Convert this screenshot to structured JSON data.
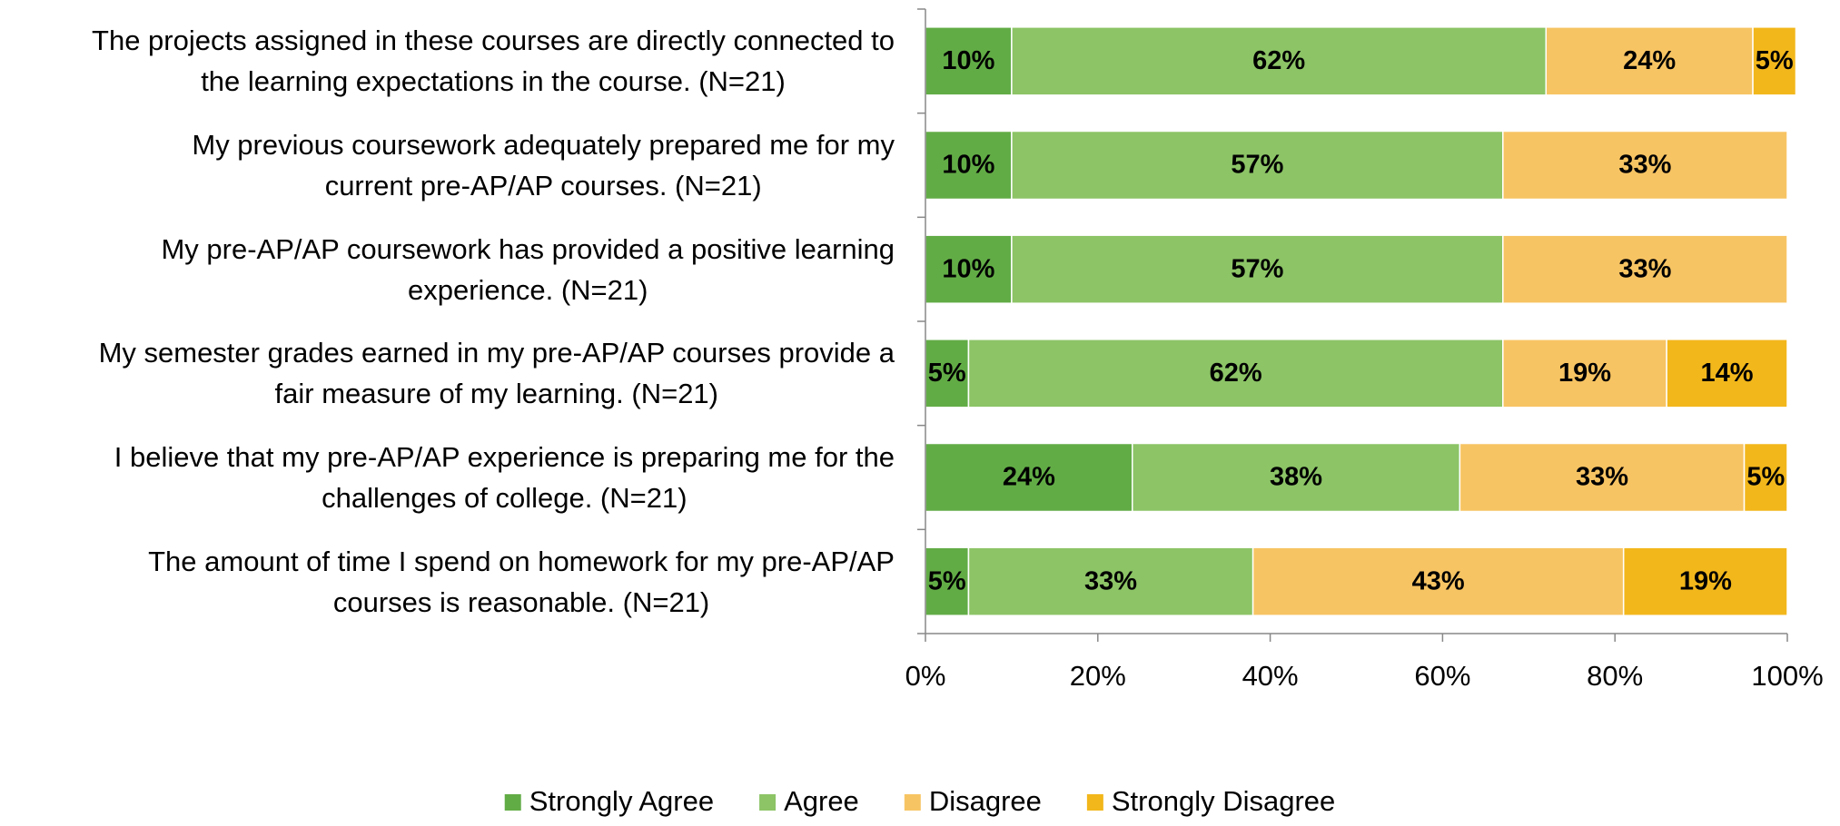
{
  "chart_data": {
    "type": "stacked-bar-horizontal",
    "categories": [
      "The projects assigned in these courses are directly connected to\nthe learning expectations in the course. (N=21)",
      "My previous coursework adequately prepared me for my\ncurrent pre-AP/AP courses. (N=21)",
      "My pre-AP/AP coursework has provided a positive learning\nexperience. (N=21)",
      "My semester grades earned in my pre-AP/AP courses provide a\nfair measure of my learning. (N=21)",
      "I believe that my pre-AP/AP experience is preparing me for the\nchallenges of college. (N=21)",
      "The amount of time I spend on homework for my pre-AP/AP\ncourses is reasonable. (N=21)"
    ],
    "series": [
      {
        "name": "Strongly Agree",
        "color": "#62ac46",
        "values": [
          10,
          10,
          10,
          5,
          24,
          5
        ],
        "value_labels": [
          "10%",
          "10%",
          "10%",
          "5%",
          "24%",
          "5%"
        ]
      },
      {
        "name": "Agree",
        "color": "#8cc466",
        "values": [
          62,
          57,
          57,
          62,
          38,
          33
        ],
        "value_labels": [
          "62%",
          "57%",
          "57%",
          "62%",
          "38%",
          "33%"
        ]
      },
      {
        "name": "Disagree",
        "color": "#f7c463",
        "values": [
          24,
          33,
          33,
          19,
          33,
          43
        ],
        "value_labels": [
          "24%",
          "33%",
          "33%",
          "19%",
          "33%",
          "43%"
        ]
      },
      {
        "name": "Strongly Disagree",
        "color": "#f2b71b",
        "values": [
          5,
          null,
          null,
          14,
          5,
          19
        ],
        "value_labels": [
          "5%",
          null,
          null,
          "14%",
          "5%",
          "19%"
        ]
      }
    ],
    "xlim": [
      0,
      100
    ],
    "xticks": [
      {
        "value": 0,
        "label": "0%"
      },
      {
        "value": 20,
        "label": "20%"
      },
      {
        "value": 40,
        "label": "40%"
      },
      {
        "value": 60,
        "label": "60%"
      },
      {
        "value": 80,
        "label": "80%"
      },
      {
        "value": 100,
        "label": "100%"
      }
    ],
    "legend": "bottom"
  }
}
